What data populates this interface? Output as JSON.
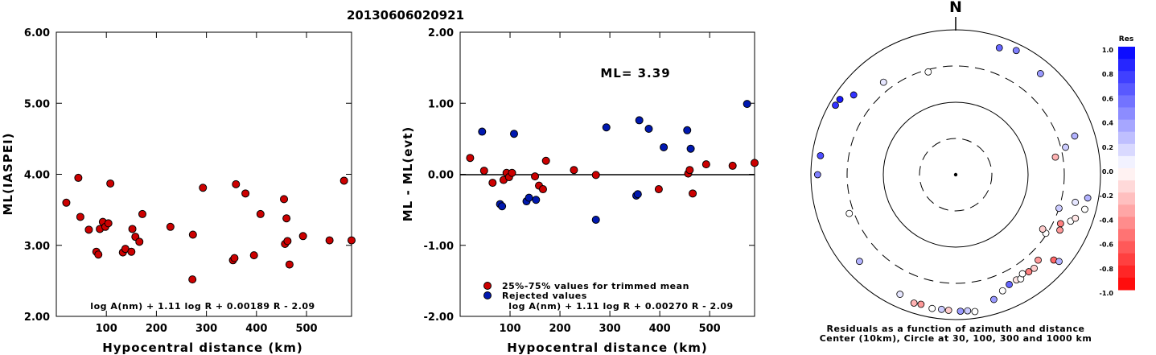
{
  "title": "20130606020921",
  "chart_data": [
    {
      "type": "scatter",
      "id": "ml-vs-distance",
      "xlabel": "Hypocentral distance (km)",
      "ylabel": "ML(IASPEI)",
      "xlim": [
        0,
        590
      ],
      "ylim": [
        2.0,
        6.0
      ],
      "xticks": [
        "100",
        "200",
        "300",
        "400",
        "500"
      ],
      "yticks": [
        "2.00",
        "3.00",
        "4.00",
        "5.00",
        "6.00"
      ],
      "formula": "log A(nm) + 1.11 log R + 0.00189 R - 2.09",
      "color": "#cc0000",
      "points": [
        [
          20,
          3.6
        ],
        [
          44,
          3.95
        ],
        [
          48,
          3.4
        ],
        [
          65,
          3.22
        ],
        [
          80,
          2.91
        ],
        [
          84,
          2.87
        ],
        [
          87,
          3.23
        ],
        [
          93,
          3.33
        ],
        [
          98,
          3.26
        ],
        [
          104,
          3.31
        ],
        [
          108,
          3.87
        ],
        [
          133,
          2.9
        ],
        [
          138,
          2.95
        ],
        [
          150,
          2.91
        ],
        [
          152,
          3.23
        ],
        [
          158,
          3.12
        ],
        [
          166,
          3.05
        ],
        [
          172,
          3.44
        ],
        [
          228,
          3.26
        ],
        [
          272,
          2.52
        ],
        [
          273,
          3.15
        ],
        [
          293,
          3.81
        ],
        [
          353,
          2.79
        ],
        [
          356,
          2.82
        ],
        [
          359,
          3.86
        ],
        [
          378,
          3.73
        ],
        [
          395,
          2.86
        ],
        [
          408,
          3.44
        ],
        [
          455,
          3.65
        ],
        [
          457,
          3.02
        ],
        [
          460,
          3.38
        ],
        [
          462,
          3.06
        ],
        [
          466,
          2.73
        ],
        [
          493,
          3.13
        ],
        [
          546,
          3.07
        ],
        [
          575,
          3.91
        ],
        [
          590,
          3.07
        ]
      ]
    },
    {
      "type": "scatter",
      "id": "residual-vs-distance",
      "xlabel": "Hypocentral distance (km)",
      "ylabel": "ML - ML(evt)",
      "xlim": [
        0,
        590
      ],
      "ylim": [
        -2.0,
        2.0
      ],
      "xticks": [
        "100",
        "200",
        "300",
        "400",
        "500"
      ],
      "yticks": [
        "-2.00",
        "-1.00",
        "0.00",
        "1.00",
        "2.00"
      ],
      "ml_text": "ML= 3.39",
      "formula": "log A(nm) + 1.11 log R + 0.00270 R - 2.09",
      "legend": [
        {
          "label": "25%-75% values for trimmed mean",
          "color": "#cc0000"
        },
        {
          "label": "Rejected values",
          "color": "#0018b0"
        }
      ],
      "used": [
        [
          20,
          0.23
        ],
        [
          48,
          0.05
        ],
        [
          65,
          -0.12
        ],
        [
          87,
          -0.08
        ],
        [
          93,
          0.02
        ],
        [
          98,
          -0.04
        ],
        [
          104,
          0.02
        ],
        [
          150,
          -0.03
        ],
        [
          158,
          -0.16
        ],
        [
          166,
          -0.21
        ],
        [
          172,
          0.19
        ],
        [
          228,
          0.06
        ],
        [
          272,
          -0.01
        ],
        [
          398,
          -0.21
        ],
        [
          457,
          0.01
        ],
        [
          460,
          0.06
        ],
        [
          466,
          -0.27
        ],
        [
          493,
          0.14
        ],
        [
          546,
          0.12
        ],
        [
          590,
          0.16
        ]
      ],
      "rejected": [
        [
          44,
          0.6
        ],
        [
          80,
          -0.42
        ],
        [
          84,
          -0.45
        ],
        [
          108,
          0.57
        ],
        [
          133,
          -0.38
        ],
        [
          138,
          -0.33
        ],
        [
          152,
          -0.36
        ],
        [
          293,
          0.66
        ],
        [
          353,
          -0.3
        ],
        [
          356,
          -0.28
        ],
        [
          359,
          0.76
        ],
        [
          378,
          0.64
        ],
        [
          408,
          0.38
        ],
        [
          455,
          0.62
        ],
        [
          462,
          0.36
        ],
        [
          272,
          -0.64
        ],
        [
          575,
          0.99
        ]
      ]
    },
    {
      "type": "scatter",
      "id": "azimuth-distance-residuals",
      "north_label": "N",
      "caption_line1": "Residuals as a function of azimuth and distance",
      "caption_line2": "Center (10km), Circle at 30, 100, 300 and 1000 km",
      "rings_km": [
        10,
        30,
        100,
        300,
        1000
      ],
      "colorbar": {
        "title": "Res",
        "ticks": [
          "1.0",
          "0.8",
          "0.6",
          "0.4",
          "0.2",
          "0.0",
          "-0.2",
          "-0.4",
          "-0.6",
          "-0.8",
          "-1.0"
        ]
      },
      "points_azimuth_deg_dist_km_res": [
        [
          19,
          700,
          0.6
        ],
        [
          26,
          800,
          0.5
        ],
        [
          40,
          650,
          0.4
        ],
        [
          300,
          820,
          0.8
        ],
        [
          303,
          800,
          0.9
        ],
        [
          308,
          600,
          0.8
        ],
        [
          322,
          400,
          0.1
        ],
        [
          345,
          280,
          0.0
        ],
        [
          270,
          800,
          0.5
        ],
        [
          278,
          760,
          0.7
        ],
        [
          250,
          350,
          0.0
        ],
        [
          228,
          600,
          0.3
        ],
        [
          205,
          650,
          0.1
        ],
        [
          198,
          720,
          -0.3
        ],
        [
          195,
          700,
          -0.4
        ],
        [
          190,
          740,
          0.0
        ],
        [
          186,
          730,
          0.2
        ],
        [
          183,
          740,
          -0.2
        ],
        [
          178,
          760,
          0.4
        ],
        [
          175,
          760,
          0.2
        ],
        [
          172,
          800,
          0.0
        ],
        [
          163,
          620,
          0.4
        ],
        [
          158,
          520,
          0.0
        ],
        [
          154,
          470,
          0.6
        ],
        [
          150,
          460,
          -0.1
        ],
        [
          148,
          480,
          0.0
        ],
        [
          146,
          430,
          0.0
        ],
        [
          143,
          460,
          -0.5
        ],
        [
          140,
          470,
          -0.2
        ],
        [
          136,
          420,
          -0.4
        ],
        [
          131,
          610,
          -0.6
        ],
        [
          123,
          290,
          0.0
        ],
        [
          122,
          250,
          -0.2
        ],
        [
          118,
          410,
          -0.4
        ],
        [
          115,
          380,
          -0.5
        ],
        [
          112,
          500,
          0.0
        ],
        [
          105,
          690,
          0.0
        ],
        [
          110,
          560,
          -0.1
        ],
        [
          130,
          720,
          0.3
        ],
        [
          100,
          700,
          0.3
        ],
        [
          72,
          520,
          0.3
        ],
        [
          76,
          350,
          0.2
        ],
        [
          80,
          240,
          -0.3
        ],
        [
          103,
          480,
          0.1
        ],
        [
          108,
          300,
          0.2
        ]
      ]
    }
  ]
}
